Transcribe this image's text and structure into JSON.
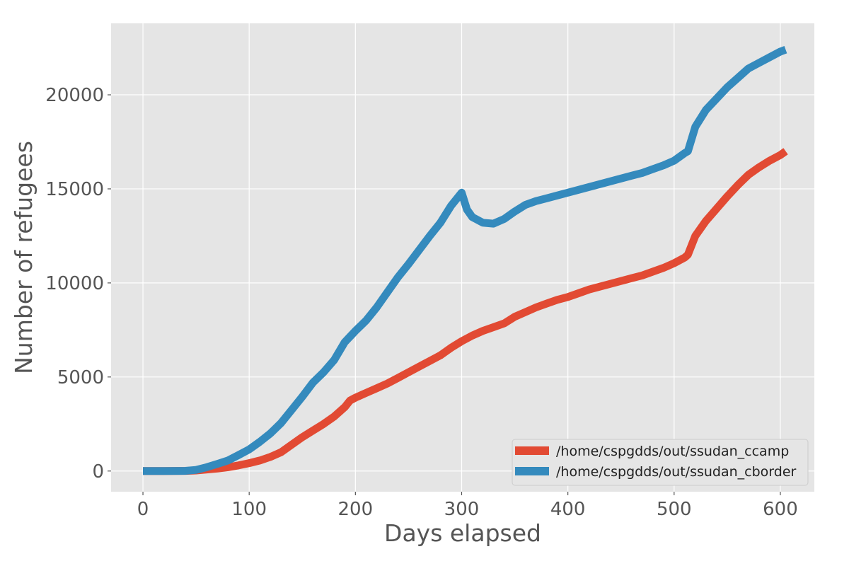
{
  "chart_data": {
    "type": "line",
    "xlabel": "Days elapsed",
    "ylabel": "Number of refugees",
    "xlim": [
      -30,
      632
    ],
    "ylim": [
      -1100,
      23800
    ],
    "xticks": [
      0,
      100,
      200,
      300,
      400,
      500,
      600
    ],
    "yticks": [
      0,
      5000,
      10000,
      15000,
      20000
    ],
    "grid": true,
    "legend_position": "bottom-right",
    "series": [
      {
        "name": "/home/cspgdds/out/ssudan_ccamp",
        "color": "#e24a33",
        "x": [
          0,
          20,
          40,
          50,
          60,
          70,
          80,
          90,
          100,
          110,
          120,
          130,
          140,
          150,
          160,
          170,
          180,
          190,
          195,
          200,
          210,
          220,
          230,
          240,
          250,
          260,
          270,
          280,
          290,
          300,
          310,
          320,
          330,
          340,
          350,
          360,
          370,
          380,
          390,
          400,
          410,
          420,
          430,
          440,
          450,
          460,
          470,
          480,
          490,
          500,
          510,
          513,
          520,
          530,
          540,
          550,
          560,
          570,
          580,
          590,
          600,
          605
        ],
        "y": [
          0,
          0,
          5,
          30,
          80,
          130,
          200,
          300,
          420,
          560,
          750,
          1000,
          1400,
          1800,
          2150,
          2500,
          2900,
          3400,
          3750,
          3900,
          4150,
          4400,
          4650,
          4950,
          5250,
          5550,
          5850,
          6150,
          6550,
          6900,
          7200,
          7450,
          7650,
          7850,
          8200,
          8450,
          8700,
          8900,
          9100,
          9250,
          9450,
          9650,
          9800,
          9950,
          10100,
          10250,
          10400,
          10600,
          10800,
          11050,
          11350,
          11500,
          12500,
          13300,
          13950,
          14600,
          15200,
          15750,
          16150,
          16500,
          16800,
          17000
        ]
      },
      {
        "name": "/home/cspgdds/out/ssudan_cborder",
        "color": "#348abd",
        "x": [
          0,
          20,
          40,
          50,
          60,
          70,
          80,
          90,
          100,
          110,
          120,
          130,
          140,
          150,
          160,
          170,
          180,
          190,
          195,
          200,
          210,
          220,
          230,
          240,
          250,
          260,
          270,
          280,
          290,
          300,
          305,
          310,
          320,
          330,
          340,
          350,
          360,
          370,
          380,
          390,
          400,
          410,
          420,
          430,
          440,
          450,
          460,
          470,
          480,
          490,
          500,
          510,
          513,
          520,
          530,
          540,
          550,
          560,
          570,
          580,
          590,
          600,
          605
        ],
        "y": [
          0,
          0,
          10,
          60,
          200,
          380,
          560,
          850,
          1150,
          1550,
          2000,
          2550,
          3250,
          3950,
          4700,
          5250,
          5900,
          6850,
          7150,
          7450,
          8000,
          8700,
          9500,
          10300,
          11000,
          11750,
          12500,
          13200,
          14100,
          14800,
          13900,
          13500,
          13200,
          13150,
          13400,
          13800,
          14150,
          14350,
          14500,
          14650,
          14800,
          14950,
          15100,
          15250,
          15400,
          15550,
          15700,
          15850,
          16050,
          16250,
          16500,
          16900,
          17000,
          18300,
          19200,
          19800,
          20400,
          20900,
          21400,
          21700,
          22000,
          22300,
          22400
        ]
      }
    ]
  }
}
